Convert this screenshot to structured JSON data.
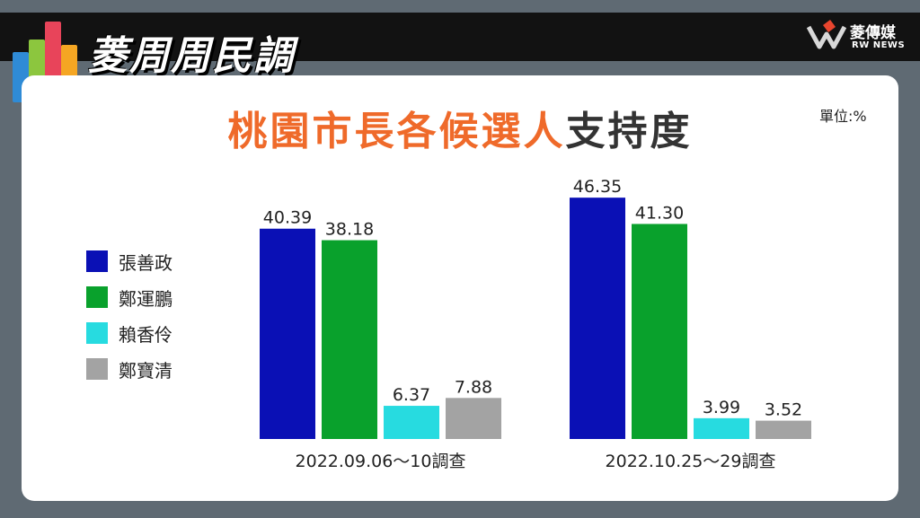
{
  "brand": {
    "title": "菱周周民調",
    "logo_name": "菱傳媒",
    "logo_sub": "RW NEWS"
  },
  "header": {
    "title_orange": "桃園市長各候選人",
    "title_dark": "支持度",
    "unit": "單位:%"
  },
  "colors": {
    "background": "#5f6a73",
    "title_orange": "#ef6a2a",
    "series": [
      "#0a10b5",
      "#09a12c",
      "#27dbe0",
      "#a3a3a3"
    ]
  },
  "chart_data": {
    "type": "bar",
    "title": "桃園市長各候選人支持度",
    "unit": "單位:%",
    "categories": [
      "2022.09.06～10調查",
      "2022.10.25～29調查"
    ],
    "series": [
      {
        "name": "張善政",
        "color": "#0a10b5",
        "values": [
          40.39,
          46.35
        ],
        "labels": [
          "40.39",
          "46.35"
        ]
      },
      {
        "name": "鄭運鵬",
        "color": "#09a12c",
        "values": [
          38.18,
          41.3
        ],
        "labels": [
          "38.18",
          "41.30"
        ]
      },
      {
        "name": "賴香伶",
        "color": "#27dbe0",
        "values": [
          6.37,
          3.99
        ],
        "labels": [
          "6.37",
          "3.99"
        ]
      },
      {
        "name": "鄭寶清",
        "color": "#a3a3a3",
        "values": [
          7.88,
          3.52
        ],
        "labels": [
          "7.88",
          "3.52"
        ]
      }
    ],
    "legend_position": "left",
    "grid": false
  }
}
